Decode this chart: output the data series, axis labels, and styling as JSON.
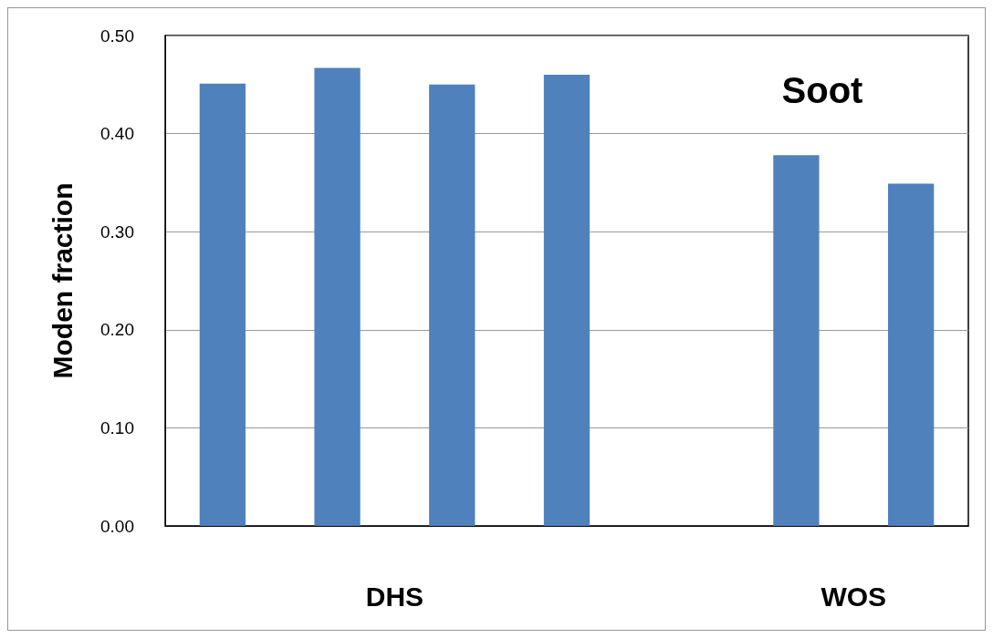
{
  "chart_data": {
    "type": "bar",
    "ylabel": "Moden fraction",
    "categories": [
      null,
      null,
      null,
      null,
      null,
      null,
      null
    ],
    "values": [
      0.451,
      0.467,
      0.45,
      0.46,
      null,
      0.378,
      0.349
    ],
    "color": "#4f81bd",
    "ylim": [
      0,
      0.5
    ],
    "yticks": [
      {
        "value": 0,
        "label": "0.00"
      },
      {
        "value": 0.1,
        "label": "0.10"
      },
      {
        "value": 0.2,
        "label": "0.20"
      },
      {
        "value": 0.3,
        "label": "0.30"
      },
      {
        "value": 0.4,
        "label": "0.40"
      },
      {
        "value": 0.5,
        "label": "0.50"
      }
    ],
    "grid": "y",
    "annotations": [
      "DHS",
      "WOS",
      "Soot"
    ]
  }
}
